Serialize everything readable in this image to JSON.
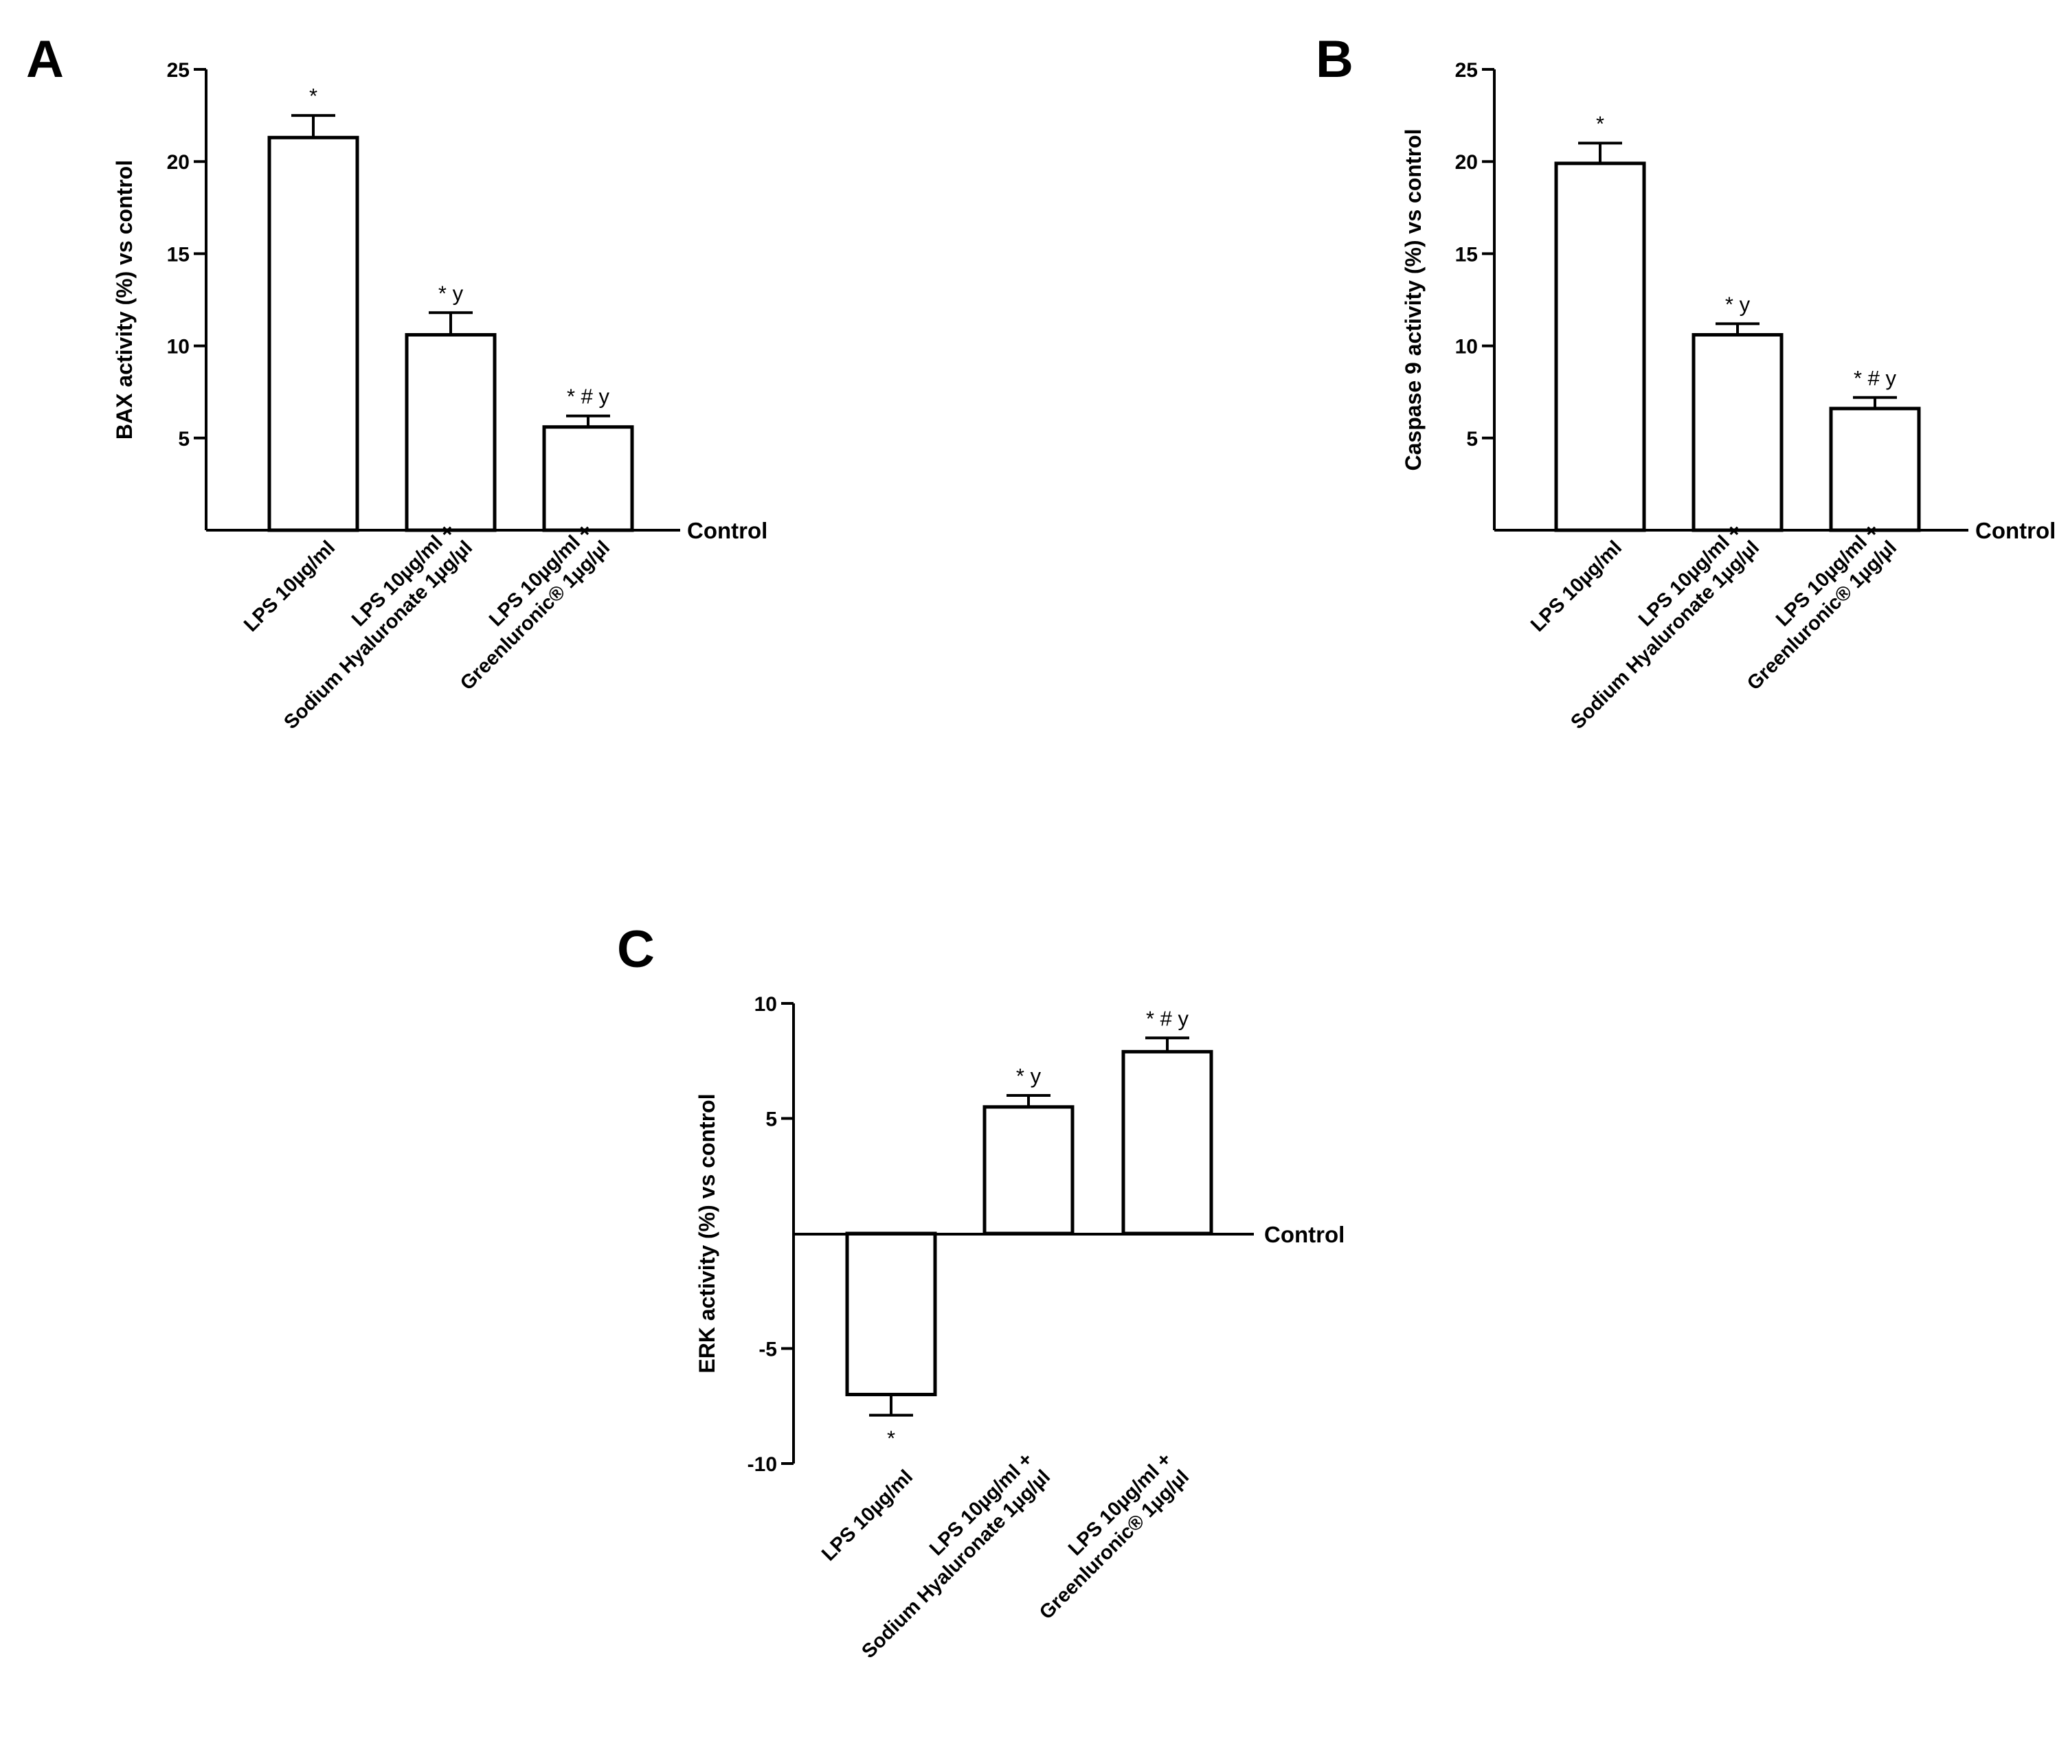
{
  "chart_data": [
    {
      "panel": "A",
      "type": "bar",
      "ylabel": "BAX activity (%) vs control",
      "baseline_label": "Control",
      "ylim": [
        0,
        25
      ],
      "yticks": [
        5,
        10,
        15,
        20,
        25
      ],
      "categories": [
        [
          "LPS 10µg/ml"
        ],
        [
          "LPS 10µg/ml  +",
          "Sodium Hyaluronate 1µg/µl"
        ],
        [
          "LPS 10µg/ml  +",
          "Greenluronic® 1µg/µl"
        ]
      ],
      "values": [
        21.3,
        10.6,
        5.6
      ],
      "errors": [
        1.2,
        1.2,
        0.6
      ],
      "annotations": [
        "*",
        "* y",
        "* # y"
      ]
    },
    {
      "panel": "B",
      "type": "bar",
      "ylabel": "Caspase 9 activity (%) vs control",
      "baseline_label": "Control",
      "ylim": [
        0,
        25
      ],
      "yticks": [
        5,
        10,
        15,
        20,
        25
      ],
      "categories": [
        [
          "LPS 10µg/ml"
        ],
        [
          "LPS 10µg/ml  +",
          "Sodium Hyaluronate 1µg/µl"
        ],
        [
          "LPS 10µg/ml  +",
          "Greenluronic® 1µg/µl"
        ]
      ],
      "values": [
        19.9,
        10.6,
        6.6
      ],
      "errors": [
        1.1,
        0.6,
        0.6
      ],
      "annotations": [
        "*",
        "* y",
        "* # y"
      ]
    },
    {
      "panel": "C",
      "type": "bar",
      "ylabel": "ERK activity (%) vs control",
      "baseline_label": "Control",
      "ylim": [
        -10,
        10
      ],
      "yticks": [
        -10,
        -5,
        5,
        10
      ],
      "categories": [
        [
          "LPS 10µg/ml"
        ],
        [
          "LPS 10µg/ml +",
          "Sodium Hyaluronate 1µg/µl"
        ],
        [
          "LPS 10µg/ml  +",
          "Greenluronic® 1µg/µl"
        ]
      ],
      "values": [
        -7.0,
        5.5,
        7.9
      ],
      "errors": [
        0.9,
        0.5,
        0.6
      ],
      "annotations": [
        "*",
        "* y",
        "* # y"
      ]
    }
  ]
}
